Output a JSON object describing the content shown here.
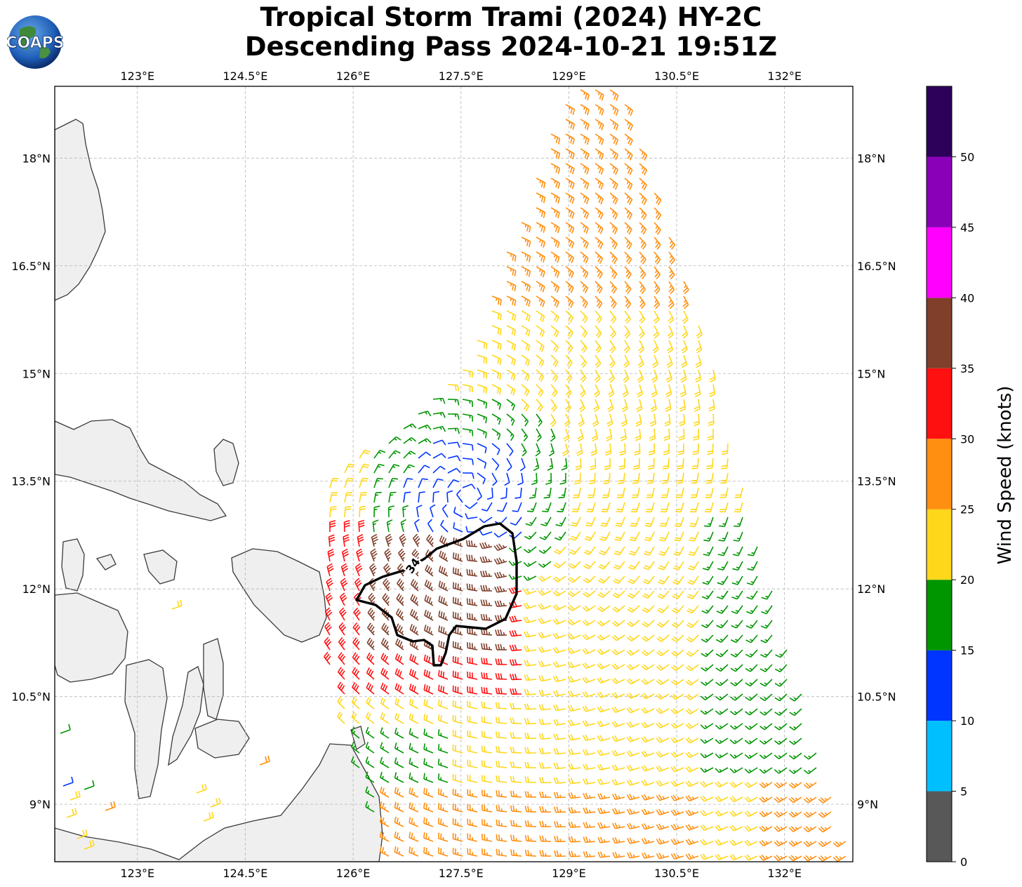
{
  "title": {
    "line1": "Tropical Storm Trami (2024) HY-2C",
    "line2": "Descending Pass 2024-10-21 19:51Z"
  },
  "logo": {
    "text": "COAPS",
    "icon": "earth-globe-icon"
  },
  "axes": {
    "lon_ticks": [
      "123°E",
      "124.5°E",
      "126°E",
      "127.5°E",
      "129°E",
      "130.5°E",
      "132°E"
    ],
    "lon_values": [
      123,
      124.5,
      126,
      127.5,
      129,
      130.5,
      132
    ],
    "lat_ticks": [
      "18°N",
      "16.5°N",
      "15°N",
      "13.5°N",
      "12°N",
      "10.5°N",
      "9°N"
    ],
    "lat_values": [
      18,
      16.5,
      15,
      13.5,
      12,
      10.5,
      9
    ],
    "lon_range": [
      121.85,
      132.95
    ],
    "lat_range": [
      8.2,
      19.0
    ],
    "gridlines": true
  },
  "storm_center": {
    "lon": 127.6,
    "lat": 13.3
  },
  "contour": {
    "label": "34",
    "color": "#000000"
  },
  "colorbar": {
    "label": "Wind Speed (knots)",
    "ticks": [
      "0",
      "5",
      "10",
      "15",
      "20",
      "25",
      "30",
      "35",
      "40",
      "45",
      "50"
    ],
    "bins": [
      {
        "min": 0,
        "max": 5,
        "color": "#585858"
      },
      {
        "min": 5,
        "max": 10,
        "color": "#00bfff"
      },
      {
        "min": 10,
        "max": 15,
        "color": "#0035ff"
      },
      {
        "min": 15,
        "max": 20,
        "color": "#009600"
      },
      {
        "min": 20,
        "max": 25,
        "color": "#ffd71a"
      },
      {
        "min": 25,
        "max": 30,
        "color": "#ff8f10"
      },
      {
        "min": 30,
        "max": 35,
        "color": "#ff1010"
      },
      {
        "min": 35,
        "max": 40,
        "color": "#7f3f2a"
      },
      {
        "min": 40,
        "max": 45,
        "color": "#ff00ff"
      },
      {
        "min": 45,
        "max": 50,
        "color": "#8a00b8"
      },
      {
        "min": 50,
        "max": 55,
        "color": "#2d005a"
      }
    ]
  }
}
